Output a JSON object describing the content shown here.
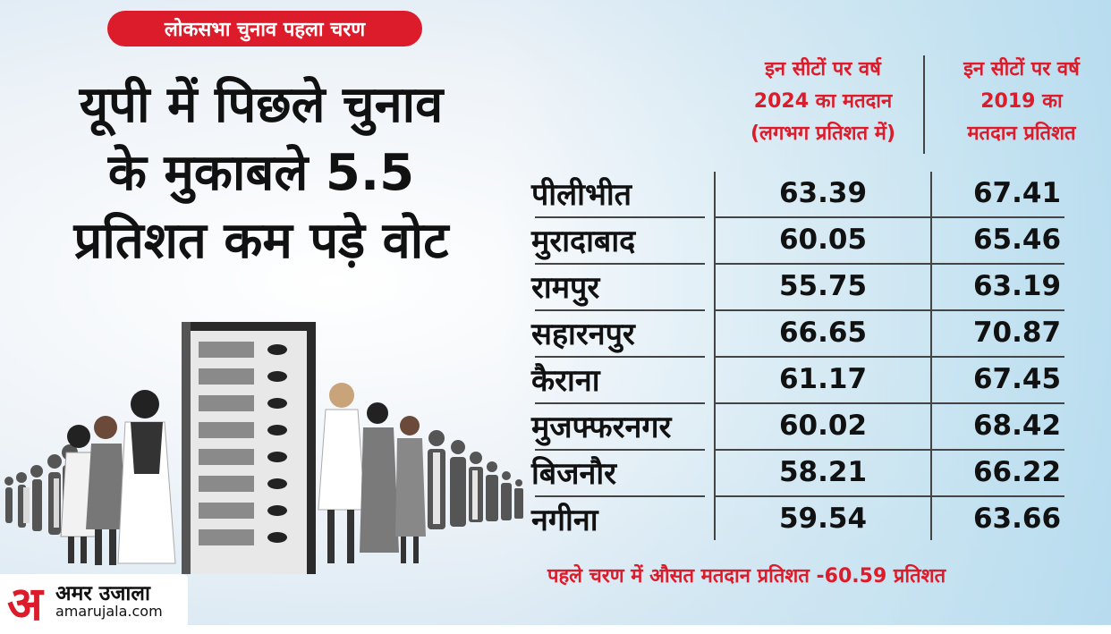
{
  "tag": "लोकसभा चुनाव पहला चरण",
  "headline": [
    "यूपी में पिछले चुनाव",
    "के मुकाबले 5.5",
    "प्रतिशत कम पड़े वोट"
  ],
  "columns": {
    "c2024": [
      "इन सीटों पर वर्ष",
      "2024 का मतदान",
      "(लगभग प्रतिशत में)"
    ],
    "c2019": [
      "इन सीटों पर वर्ष",
      "2019 का",
      "मतदान प्रतिशत"
    ]
  },
  "chart_data": {
    "type": "table",
    "rows": [
      {
        "name": "पीलीभीत",
        "v2024": "63.39",
        "v2019": "67.41"
      },
      {
        "name": "मुरादाबाद",
        "v2024": "60.05",
        "v2019": "65.46"
      },
      {
        "name": "रामपुर",
        "v2024": "55.75",
        "v2019": "63.19"
      },
      {
        "name": "सहारनपुर",
        "v2024": "66.65",
        "v2019": "70.87"
      },
      {
        "name": "कैराना",
        "v2024": "61.17",
        "v2019": "67.45"
      },
      {
        "name": "मुजफ्फरनगर",
        "v2024": "60.02",
        "v2019": "68.42"
      },
      {
        "name": "बिजनौर",
        "v2024": "58.21",
        "v2019": "66.22"
      },
      {
        "name": "नगीना",
        "v2024": "59.54",
        "v2019": "63.66"
      }
    ]
  },
  "footer": "पहले चरण में औसत मतदान प्रतिशत -60.59 प्रतिशत",
  "logo": {
    "mark": "अ",
    "name": "अमर उजाला",
    "url": "amarujala.com"
  },
  "colors": {
    "accent": "#dc1c2b",
    "text": "#111111"
  }
}
